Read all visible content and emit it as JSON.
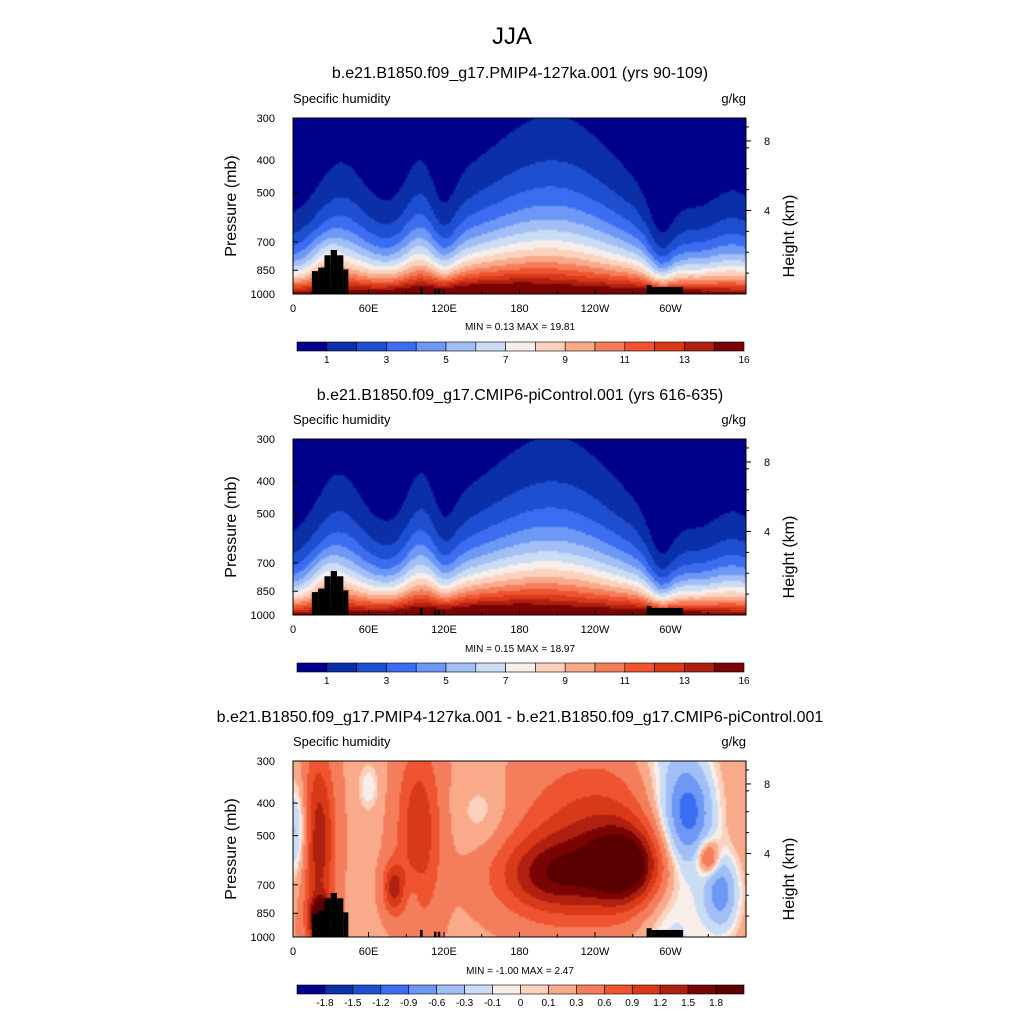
{
  "figure": {
    "title": "JJA",
    "panel_variable": "Specific humidity",
    "units": "g/kg",
    "left_axis_label": "Pressure (mb)",
    "right_axis_label": "Height (km)"
  },
  "chart_data": [
    {
      "type": "heatmap",
      "title": "b.e21.B1850.f09_g17.PMIP4-127ka.001 (yrs 90-109)",
      "variable": "Specific humidity",
      "units": "g/kg",
      "ylabel": "Pressure (mb)",
      "y2label": "Height (km)",
      "x_ticks": [
        "0",
        "60E",
        "120E",
        "180",
        "120W",
        "60W"
      ],
      "x_tick_values": [
        0,
        60,
        120,
        180,
        240,
        300
      ],
      "xlim": [
        0,
        360
      ],
      "y_ticks": [
        "300",
        "400",
        "500",
        "700",
        "850",
        "1000"
      ],
      "y_tick_values": [
        300,
        400,
        500,
        700,
        850,
        1000
      ],
      "ylim": [
        1000,
        300
      ],
      "y2_ticks": [
        "8",
        "4"
      ],
      "y2_tick_values": [
        8,
        4
      ],
      "stats_text": "MIN =   0.13  MAX =  19.81",
      "min": 0.13,
      "max": 19.81,
      "colorbar_levels": [
        "1",
        "3",
        "5",
        "7",
        "9",
        "11",
        "13",
        "16"
      ],
      "colorbar_colors": [
        "#00008b",
        "#0b2fa6",
        "#1e4fd0",
        "#3c6df0",
        "#6e98f5",
        "#a2bff5",
        "#cbdcf5",
        "#f7eeea",
        "#fbd2be",
        "#f8aa8a",
        "#f47e5c",
        "#ef5430",
        "#d83918",
        "#b02010",
        "#7a0403"
      ]
    },
    {
      "type": "heatmap",
      "title": "b.e21.B1850.f09_g17.CMIP6-piControl.001 (yrs 616-635)",
      "variable": "Specific humidity",
      "units": "g/kg",
      "ylabel": "Pressure (mb)",
      "y2label": "Height (km)",
      "x_ticks": [
        "0",
        "60E",
        "120E",
        "180",
        "120W",
        "60W"
      ],
      "x_tick_values": [
        0,
        60,
        120,
        180,
        240,
        300
      ],
      "xlim": [
        0,
        360
      ],
      "y_ticks": [
        "300",
        "400",
        "500",
        "700",
        "850",
        "1000"
      ],
      "y_tick_values": [
        300,
        400,
        500,
        700,
        850,
        1000
      ],
      "ylim": [
        1000,
        300
      ],
      "y2_ticks": [
        "8",
        "4"
      ],
      "y2_tick_values": [
        8,
        4
      ],
      "stats_text": "MIN =   0.15  MAX =  18.97",
      "min": 0.15,
      "max": 18.97,
      "colorbar_levels": [
        "1",
        "3",
        "5",
        "7",
        "9",
        "11",
        "13",
        "16"
      ],
      "colorbar_colors": [
        "#00008b",
        "#0b2fa6",
        "#1e4fd0",
        "#3c6df0",
        "#6e98f5",
        "#a2bff5",
        "#cbdcf5",
        "#f7eeea",
        "#fbd2be",
        "#f8aa8a",
        "#f47e5c",
        "#ef5430",
        "#d83918",
        "#b02010",
        "#7a0403"
      ]
    },
    {
      "type": "heatmap",
      "title": "b.e21.B1850.f09_g17.PMIP4-127ka.001 - b.e21.B1850.f09_g17.CMIP6-piControl.001",
      "variable": "Specific humidity",
      "units": "g/kg",
      "ylabel": "Pressure (mb)",
      "y2label": "Height (km)",
      "x_ticks": [
        "0",
        "60E",
        "120E",
        "180",
        "120W",
        "60W"
      ],
      "x_tick_values": [
        0,
        60,
        120,
        180,
        240,
        300
      ],
      "xlim": [
        0,
        360
      ],
      "y_ticks": [
        "300",
        "400",
        "500",
        "700",
        "850",
        "1000"
      ],
      "y_tick_values": [
        300,
        400,
        500,
        700,
        850,
        1000
      ],
      "ylim": [
        1000,
        300
      ],
      "y2_ticks": [
        "8",
        "4"
      ],
      "y2_tick_values": [
        8,
        4
      ],
      "stats_text": "MIN =  -1.00  MAX =   2.47",
      "min": -1.0,
      "max": 2.47,
      "colorbar_levels": [
        "-1.8",
        "-1.5",
        "-1.2",
        "-0.9",
        "-0.6",
        "-0.3",
        "-0.1",
        "0",
        "0.1",
        "0.3",
        "0.6",
        "0.9",
        "1.2",
        "1.5",
        "1.8"
      ],
      "colorbar_colors": [
        "#00008b",
        "#0b2fa6",
        "#1e4fd0",
        "#3c6df0",
        "#6e98f5",
        "#a2bff5",
        "#cbdcf5",
        "#f7eeea",
        "#fbd2be",
        "#f8aa8a",
        "#f47e5c",
        "#ef5430",
        "#d83918",
        "#b02010",
        "#7a0403",
        "#5a0000"
      ]
    }
  ]
}
